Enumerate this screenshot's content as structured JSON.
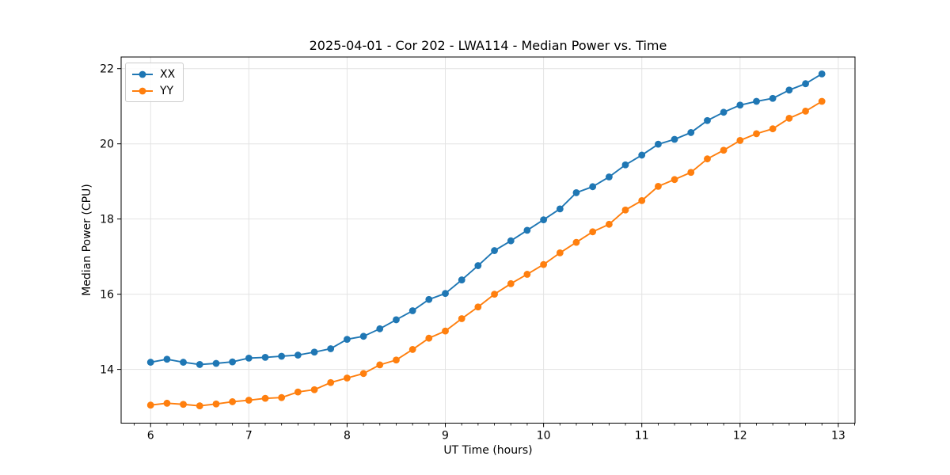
{
  "chart_data": {
    "type": "line",
    "title": "2025-04-01 - Cor 202 - LWA114 - Median Power vs. Time",
    "xlabel": "UT Time (hours)",
    "ylabel": "Median Power (CPU)",
    "xlim": [
      5.7,
      13.17
    ],
    "ylim": [
      12.57,
      22.31
    ],
    "x_major_ticks": [
      6,
      7,
      8,
      9,
      10,
      11,
      12,
      13
    ],
    "x_minor_step": 0.1667,
    "y_major_ticks": [
      14,
      16,
      18,
      20,
      22
    ],
    "grid": true,
    "grid_color": "#e3e3e3",
    "spine_color": "#000000",
    "legend_position": "upper left",
    "x": [
      6.0,
      6.167,
      6.333,
      6.5,
      6.667,
      6.833,
      7.0,
      7.167,
      7.333,
      7.5,
      7.667,
      7.833,
      8.0,
      8.167,
      8.333,
      8.5,
      8.667,
      8.833,
      9.0,
      9.167,
      9.333,
      9.5,
      9.667,
      9.833,
      10.0,
      10.167,
      10.333,
      10.5,
      10.667,
      10.833,
      11.0,
      11.167,
      11.333,
      11.5,
      11.667,
      11.833,
      12.0,
      12.167,
      12.333,
      12.5,
      12.667,
      12.833
    ],
    "series": [
      {
        "name": "XX",
        "color": "#1f77b4",
        "values": [
          14.19,
          14.27,
          14.19,
          14.13,
          14.16,
          14.2,
          14.3,
          14.32,
          14.35,
          14.38,
          14.46,
          14.55,
          14.8,
          14.88,
          15.08,
          15.32,
          15.56,
          15.86,
          16.02,
          16.38,
          16.76,
          17.16,
          17.42,
          17.7,
          17.98,
          18.27,
          18.7,
          18.86,
          19.12,
          19.44,
          19.7,
          19.99,
          20.12,
          20.3,
          20.62,
          20.84,
          21.03,
          21.13,
          21.21,
          21.43,
          21.6,
          21.86
        ]
      },
      {
        "name": "YY",
        "color": "#ff7f0e",
        "values": [
          13.05,
          13.1,
          13.07,
          13.03,
          13.08,
          13.14,
          13.18,
          13.23,
          13.25,
          13.4,
          13.46,
          13.65,
          13.77,
          13.89,
          14.12,
          14.25,
          14.53,
          14.83,
          15.02,
          15.35,
          15.66,
          16.0,
          16.28,
          16.53,
          16.79,
          17.1,
          17.38,
          17.66,
          17.86,
          18.24,
          18.49,
          18.87,
          19.05,
          19.24,
          19.6,
          19.83,
          20.09,
          20.27,
          20.4,
          20.68,
          20.87,
          21.13
        ]
      }
    ]
  }
}
